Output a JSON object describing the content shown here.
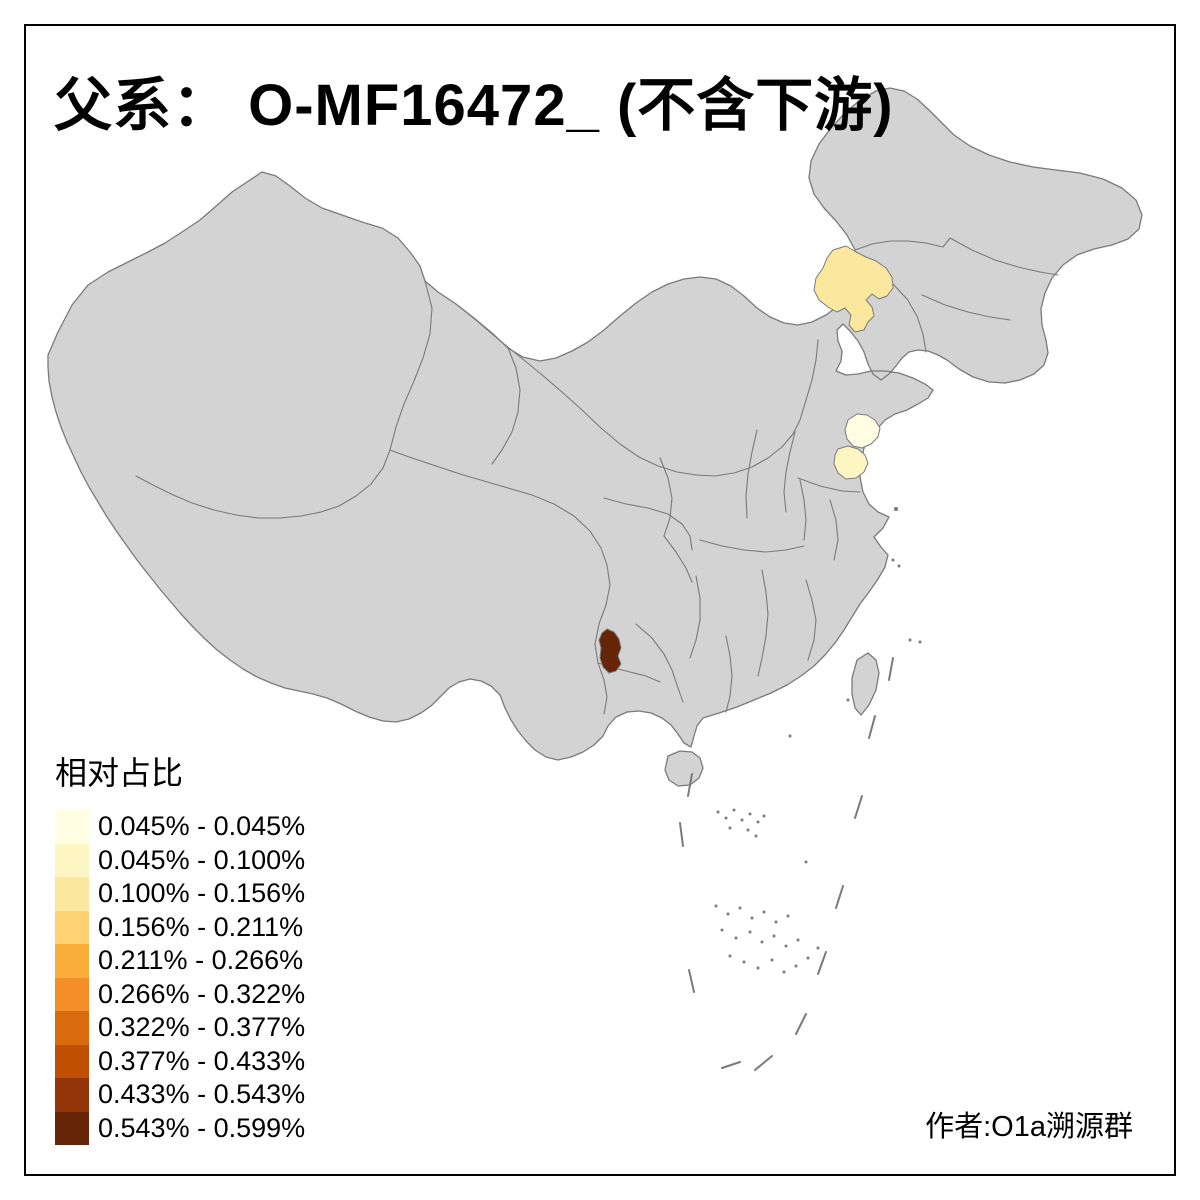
{
  "title": {
    "text": "父系： O-MF16472_ (不含下游)"
  },
  "legend": {
    "title": "相对占比",
    "items": [
      {
        "range": "0.045% - 0.045%",
        "color": "#FFFEE3"
      },
      {
        "range": "0.045% - 0.100%",
        "color": "#FDF6C3"
      },
      {
        "range": "0.100% - 0.156%",
        "color": "#FCE79E"
      },
      {
        "range": "0.156% - 0.211%",
        "color": "#FDD273"
      },
      {
        "range": "0.211% - 0.266%",
        "color": "#FBAE3C"
      },
      {
        "range": "0.266% - 0.322%",
        "color": "#F28D27"
      },
      {
        "range": "0.322% - 0.377%",
        "color": "#D96A0E"
      },
      {
        "range": "0.377% - 0.433%",
        "color": "#C04F04"
      },
      {
        "range": "0.433% - 0.543%",
        "color": "#933409"
      },
      {
        "range": "0.543% - 0.599%",
        "color": "#662506"
      }
    ]
  },
  "attribution": {
    "text": "作者:O1a溯源群"
  },
  "map": {
    "land_fill": "#D3D3D3",
    "border_color": "#7A7A7A",
    "frame_color": "#000000",
    "highlighted_regions": [
      {
        "name": "inner-mongolia-prefecture",
        "range": "0.100% - 0.156%",
        "color": "#FCE79E"
      },
      {
        "name": "shandong-north-prefecture",
        "range": "0.045% - 0.045%",
        "color": "#FFFEE3"
      },
      {
        "name": "shandong-south-prefecture",
        "range": "0.045% - 0.100%",
        "color": "#FDF6C3"
      },
      {
        "name": "sichuan-southwest-prefecture",
        "range": "0.543% - 0.599%",
        "color": "#662506"
      }
    ]
  }
}
